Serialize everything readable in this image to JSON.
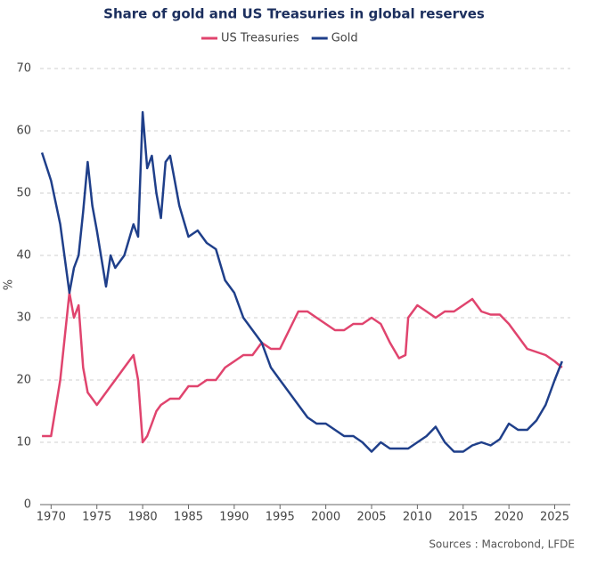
{
  "chart_data": {
    "type": "line",
    "title": "Share of gold and US Treasuries in global reserves",
    "y_label": "%",
    "source": "Sources : Macrobond, LFDE",
    "x": [
      1969,
      1970,
      1971,
      1972,
      1972.5,
      1973,
      1973.5,
      1974,
      1974.5,
      1975,
      1976,
      1976.5,
      1977,
      1978,
      1979,
      1979.5,
      1980,
      1980.5,
      1981,
      1981.5,
      1982,
      1982.5,
      1983,
      1983.5,
      1984,
      1985,
      1986,
      1987,
      1988,
      1989,
      1990,
      1991,
      1992,
      1993,
      1994,
      1995,
      1996,
      1997,
      1998,
      1999,
      2000,
      2001,
      2002,
      2003,
      2004,
      2005,
      2006,
      2007,
      2008,
      2008.7,
      2009,
      2010,
      2011,
      2012,
      2013,
      2014,
      2015,
      2016,
      2017,
      2018,
      2019,
      2020,
      2021,
      2022,
      2023,
      2024,
      2025,
      2025.8
    ],
    "series": [
      {
        "name": "US Treasuries",
        "color": "#e0446e",
        "values": [
          11,
          11,
          20,
          34,
          30,
          32,
          22,
          18,
          17,
          16,
          18,
          19,
          20,
          22,
          24,
          20,
          10,
          11,
          13,
          15,
          16,
          16.5,
          17,
          17,
          17,
          19,
          19,
          20,
          20,
          22,
          23,
          24,
          24,
          26,
          25,
          25,
          28,
          31,
          31,
          30,
          29,
          28,
          28,
          29,
          29,
          30,
          29,
          26,
          23.5,
          24,
          30,
          32,
          31,
          30,
          31,
          31,
          32,
          33,
          31,
          30.5,
          30.5,
          29,
          27,
          25,
          24.5,
          24,
          23,
          22
        ]
      },
      {
        "name": "Gold",
        "color": "#1f3f8a",
        "values": [
          56.5,
          52,
          45,
          34,
          38,
          40,
          47,
          55,
          48,
          44,
          35,
          40,
          38,
          40,
          45,
          43,
          63,
          54,
          56,
          50,
          46,
          55,
          56,
          52,
          48,
          43,
          44,
          42,
          41,
          36,
          34,
          30,
          28,
          26,
          22,
          20,
          18,
          16,
          14,
          13,
          13,
          12,
          11,
          11,
          10,
          8.5,
          10,
          9,
          9,
          9,
          9,
          10,
          11,
          12.5,
          10,
          8.5,
          8.5,
          9.5,
          10,
          9.5,
          10.5,
          13,
          12,
          12,
          13.5,
          16,
          20,
          23
        ]
      }
    ],
    "xlim": [
      1968.8,
      2026.7
    ],
    "ylim": [
      0,
      70
    ],
    "xticks": [
      1970,
      1975,
      1980,
      1985,
      1990,
      1995,
      2000,
      2005,
      2010,
      2015,
      2020,
      2025
    ],
    "yticks": [
      0,
      10,
      20,
      30,
      40,
      50,
      60,
      70
    ],
    "grid": true,
    "legend": "top"
  }
}
